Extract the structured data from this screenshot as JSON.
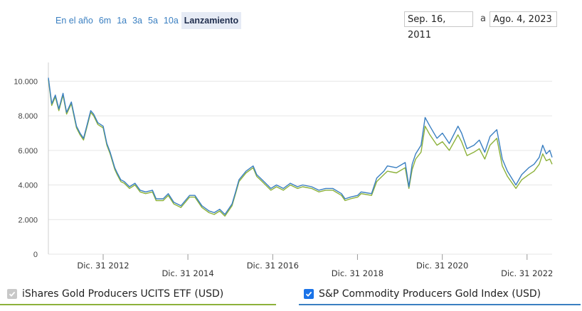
{
  "range_buttons": [
    "En el año",
    "6m",
    "1a",
    "3a",
    "5a",
    "10a",
    "Lanzamiento"
  ],
  "active_range": "Lanzamiento",
  "date_range": {
    "from": "Sep. 16, 2011",
    "separator": "a",
    "to": "Ago. 4, 2023"
  },
  "legend": [
    {
      "label": "iShares Gold Producers UCITS ETF (USD)",
      "checked": true,
      "enabled": false,
      "color": "#8cb13a",
      "checkbox_color": "#c8c8c8"
    },
    {
      "label": "S&P Commodity Producers Gold Index (USD)",
      "checked": true,
      "enabled": true,
      "color": "#3a7fc1",
      "checkbox_color": "#1a73e8"
    }
  ],
  "chart_data": {
    "type": "line",
    "x_range": [
      "2011-09-16",
      "2023-08-04"
    ],
    "ylim": [
      0,
      11000
    ],
    "yticks": [
      0,
      2000,
      4000,
      6000,
      8000,
      10000
    ],
    "ytick_labels": [
      "0",
      "2.000",
      "4.000",
      "6.000",
      "8.000",
      "10.000"
    ],
    "xtick_labels": [
      {
        "date": "2012-12-31",
        "label": "Dic. 31 2012"
      },
      {
        "date": "2014-12-31",
        "label": "Dic. 31 2014"
      },
      {
        "date": "2016-12-31",
        "label": "Dic. 31 2016"
      },
      {
        "date": "2018-12-31",
        "label": "Dic. 31 2018"
      },
      {
        "date": "2020-12-31",
        "label": "Dic. 31 2020"
      },
      {
        "date": "2022-12-31",
        "label": "Dic. 31 2022"
      }
    ],
    "grid": true,
    "legend_position": "bottom",
    "series": [
      {
        "name": "iShares Gold Producers UCITS ETF (USD)",
        "color": "#8cb13a",
        "x": [
          "2011-09-16",
          "2011-10-15",
          "2011-11-15",
          "2011-12-15",
          "2012-01-20",
          "2012-02-20",
          "2012-04-01",
          "2012-05-15",
          "2012-06-15",
          "2012-07-15",
          "2012-08-15",
          "2012-09-15",
          "2012-10-10",
          "2012-11-15",
          "2012-12-31",
          "2013-02-01",
          "2013-03-01",
          "2013-04-10",
          "2013-05-01",
          "2013-06-01",
          "2013-07-01",
          "2013-08-15",
          "2013-10-01",
          "2013-11-15",
          "2014-01-01",
          "2014-03-01",
          "2014-04-01",
          "2014-06-01",
          "2014-07-15",
          "2014-09-01",
          "2014-11-01",
          "2015-01-15",
          "2015-03-01",
          "2015-05-01",
          "2015-07-01",
          "2015-08-15",
          "2015-10-01",
          "2015-11-15",
          "2016-01-15",
          "2016-02-15",
          "2016-03-15",
          "2016-05-15",
          "2016-07-15",
          "2016-08-15",
          "2016-10-01",
          "2016-12-15",
          "2017-02-01",
          "2017-04-01",
          "2017-06-01",
          "2017-08-01",
          "2017-09-15",
          "2017-12-01",
          "2018-02-01",
          "2018-04-01",
          "2018-06-01",
          "2018-08-15",
          "2018-09-15",
          "2018-11-01",
          "2019-01-01",
          "2019-02-01",
          "2019-05-01",
          "2019-06-15",
          "2019-08-15",
          "2019-09-15",
          "2019-12-01",
          "2020-02-15",
          "2020-03-18",
          "2020-04-15",
          "2020-05-15",
          "2020-07-01",
          "2020-08-05",
          "2020-09-15",
          "2020-11-15",
          "2021-01-01",
          "2021-03-01",
          "2021-05-15",
          "2021-06-15",
          "2021-08-01",
          "2021-09-30",
          "2021-11-15",
          "2022-01-01",
          "2022-02-15",
          "2022-04-15",
          "2022-06-01",
          "2022-07-15",
          "2022-09-26",
          "2022-11-15",
          "2023-01-15",
          "2023-03-01",
          "2023-04-15",
          "2023-05-15",
          "2023-06-15",
          "2023-07-15",
          "2023-08-04"
        ],
        "y": [
          10100,
          8600,
          9100,
          8300,
          9200,
          8100,
          8700,
          7300,
          6900,
          6600,
          7400,
          8200,
          8000,
          7500,
          7300,
          6300,
          5800,
          4900,
          4600,
          4200,
          4100,
          3800,
          4000,
          3600,
          3500,
          3600,
          3100,
          3100,
          3400,
          2900,
          2700,
          3300,
          3300,
          2700,
          2400,
          2300,
          2500,
          2200,
          2800,
          3500,
          4200,
          4700,
          5000,
          4500,
          4200,
          3700,
          3900,
          3700,
          4000,
          3800,
          3900,
          3800,
          3600,
          3700,
          3700,
          3400,
          3100,
          3200,
          3300,
          3500,
          3400,
          4200,
          4600,
          4800,
          4700,
          5000,
          3800,
          4900,
          5500,
          5900,
          7400,
          6900,
          6300,
          6500,
          6000,
          6900,
          6500,
          5700,
          5900,
          6100,
          5500,
          6300,
          6700,
          5100,
          4500,
          3800,
          4300,
          4600,
          4800,
          5200,
          5800,
          5400,
          5500,
          5200
        ]
      },
      {
        "name": "S&P Commodity Producers Gold Index (USD)",
        "color": "#3a7fc1",
        "x": [
          "2011-09-16",
          "2011-10-15",
          "2011-11-15",
          "2011-12-15",
          "2012-01-20",
          "2012-02-20",
          "2012-04-01",
          "2012-05-15",
          "2012-06-15",
          "2012-07-15",
          "2012-08-15",
          "2012-09-15",
          "2012-10-10",
          "2012-11-15",
          "2012-12-31",
          "2013-02-01",
          "2013-03-01",
          "2013-04-10",
          "2013-05-01",
          "2013-06-01",
          "2013-07-01",
          "2013-08-15",
          "2013-10-01",
          "2013-11-15",
          "2014-01-01",
          "2014-03-01",
          "2014-04-01",
          "2014-06-01",
          "2014-07-15",
          "2014-09-01",
          "2014-11-01",
          "2015-01-15",
          "2015-03-01",
          "2015-05-01",
          "2015-07-01",
          "2015-08-15",
          "2015-10-01",
          "2015-11-15",
          "2016-01-15",
          "2016-02-15",
          "2016-03-15",
          "2016-05-15",
          "2016-07-15",
          "2016-08-15",
          "2016-10-01",
          "2016-12-15",
          "2017-02-01",
          "2017-04-01",
          "2017-06-01",
          "2017-08-01",
          "2017-09-15",
          "2017-12-01",
          "2018-02-01",
          "2018-04-01",
          "2018-06-01",
          "2018-08-15",
          "2018-09-15",
          "2018-11-01",
          "2019-01-01",
          "2019-02-01",
          "2019-05-01",
          "2019-06-15",
          "2019-08-15",
          "2019-09-15",
          "2019-12-01",
          "2020-02-15",
          "2020-03-18",
          "2020-04-15",
          "2020-05-15",
          "2020-07-01",
          "2020-08-05",
          "2020-09-15",
          "2020-11-15",
          "2021-01-01",
          "2021-03-01",
          "2021-05-15",
          "2021-06-15",
          "2021-08-01",
          "2021-09-30",
          "2021-11-15",
          "2022-01-01",
          "2022-02-15",
          "2022-04-15",
          "2022-06-01",
          "2022-07-15",
          "2022-09-26",
          "2022-11-15",
          "2023-01-15",
          "2023-03-01",
          "2023-04-15",
          "2023-05-15",
          "2023-06-15",
          "2023-07-15",
          "2023-08-04"
        ],
        "y": [
          10200,
          8700,
          9200,
          8400,
          9300,
          8200,
          8800,
          7400,
          7000,
          6700,
          7500,
          8300,
          8100,
          7600,
          7400,
          6400,
          5900,
          5000,
          4700,
          4300,
          4200,
          3900,
          4100,
          3700,
          3600,
          3700,
          3200,
          3200,
          3500,
          3000,
          2800,
          3400,
          3400,
          2800,
          2500,
          2400,
          2600,
          2300,
          2900,
          3600,
          4300,
          4800,
          5100,
          4600,
          4300,
          3800,
          4000,
          3800,
          4100,
          3900,
          4000,
          3900,
          3700,
          3800,
          3800,
          3500,
          3200,
          3300,
          3400,
          3600,
          3500,
          4400,
          4800,
          5100,
          5000,
          5300,
          3900,
          5200,
          5800,
          6300,
          7900,
          7400,
          6700,
          7000,
          6400,
          7400,
          7000,
          6100,
          6300,
          6600,
          5900,
          6800,
          7200,
          5500,
          4800,
          4000,
          4600,
          5000,
          5200,
          5600,
          6300,
          5800,
          6000,
          5600
        ]
      }
    ]
  }
}
